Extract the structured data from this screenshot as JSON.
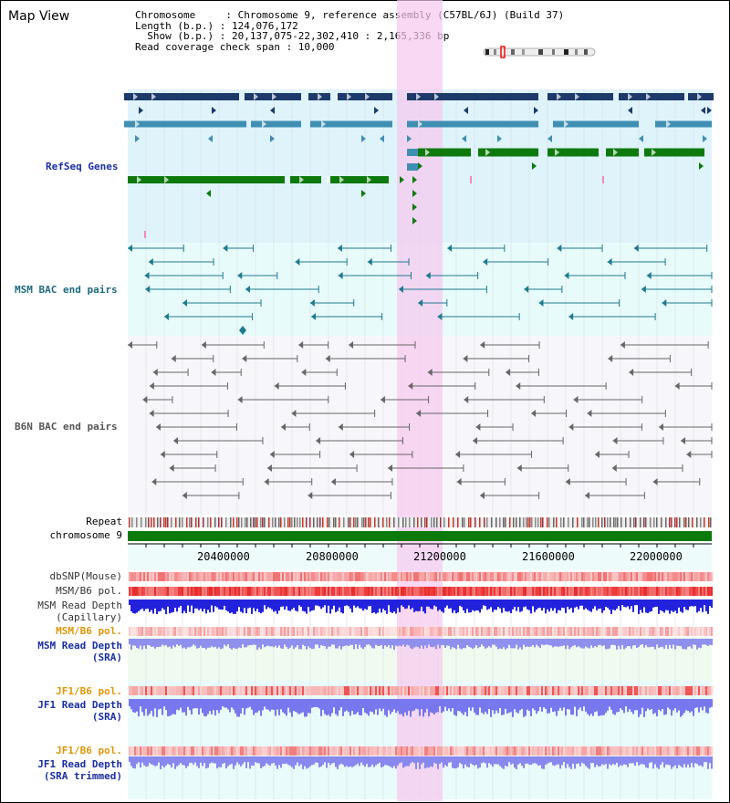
{
  "view_title": "Map View",
  "info": {
    "line1": "Chromosome     : Chromosome 9, reference assembly (C57BL/6J) (Build 37)",
    "line2": "Length (b.p.) : 124,076,172",
    "line3": "  Show (b.p.) : 20,137,075-22,302,410 : 2,165,336 bp",
    "line4": "Read coverage check span : 10,000"
  },
  "tracks": {
    "refseq": "RefSeq Genes",
    "msm_bac": "MSM BAC end pairs",
    "b6n_bac": "B6N BAC end pairs",
    "repeat": "Repeat",
    "chromosome": "chromosome 9",
    "dbsnp": "dbSNP(Mouse)",
    "msm_b6_pol": "MSM/B6 pol.",
    "msm_depth_cap_1": "MSM Read Depth",
    "msm_depth_cap_2": "(Capillary)",
    "msm_b6_pol_sra": "MSM/B6 pol.",
    "msm_depth_sra_1": "MSM Read Depth",
    "msm_depth_sra_2": "(SRA)",
    "jf1_pol": "JF1/B6 pol.",
    "jf1_depth_1": "JF1 Read Depth",
    "jf1_depth_2": "(SRA)",
    "jf1_pol_trim": "JF1/B6 pol.",
    "jf1_depth_trim_1": "JF1 Read Depth",
    "jf1_depth_trim_2": "(SRA trimmed)"
  },
  "axis": {
    "ticks": [
      "20400000",
      "20800000",
      "21200000",
      "21600000",
      "22000000"
    ]
  },
  "colors": {
    "refseq_bg": "#dff3fb",
    "msm_bg": "#e8fbfb",
    "b6n_bg": "#f7f7fb",
    "highlight": "#f9d6f0",
    "navy": "#1d3a6b",
    "steel": "#3f8fb3",
    "green": "#0e7a0e",
    "msm_line": "#1e7a8f",
    "b6n_line": "#666666",
    "depth_blue": "#2222dd",
    "depth_light": "#7777ee",
    "label_blue": "#1a2fa0",
    "label_orange": "#e0960a",
    "label_teal": "#1e6b7f"
  }
}
